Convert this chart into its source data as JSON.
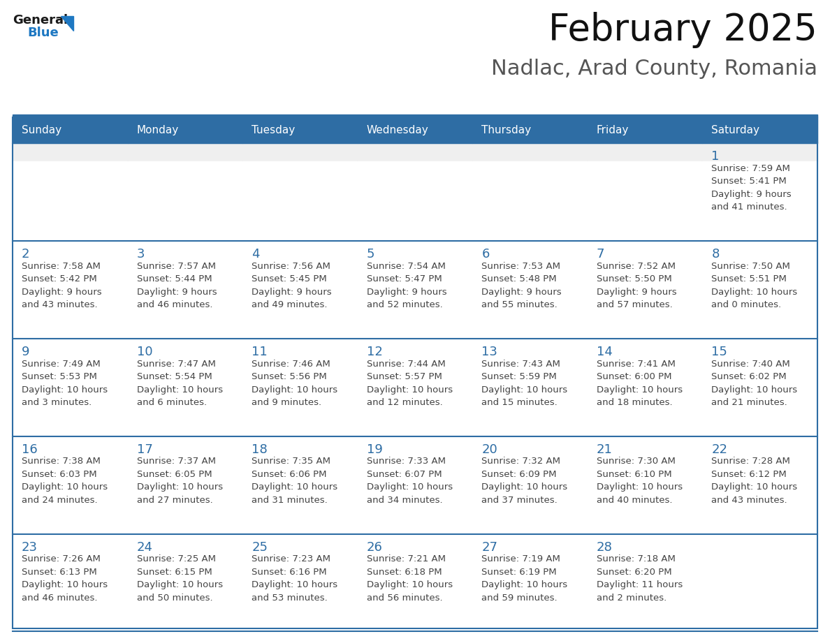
{
  "title": "February 2025",
  "subtitle": "Nadlac, Arad County, Romania",
  "header_color": "#2E6DA4",
  "header_text_color": "#FFFFFF",
  "day_names": [
    "Sunday",
    "Monday",
    "Tuesday",
    "Wednesday",
    "Thursday",
    "Friday",
    "Saturday"
  ],
  "background_color": "#FFFFFF",
  "cell_bg_row1_top": "#EFEFEF",
  "cell_bg_white": "#FFFFFF",
  "separator_color": "#2E6DA4",
  "separator_light": "#AAAAAA",
  "day_number_color": "#2E6DA4",
  "text_color": "#444444",
  "logo_general_color": "#1A1A1A",
  "logo_blue_color": "#1E78C2",
  "weeks": [
    [
      null,
      null,
      null,
      null,
      null,
      null,
      1
    ],
    [
      2,
      3,
      4,
      5,
      6,
      7,
      8
    ],
    [
      9,
      10,
      11,
      12,
      13,
      14,
      15
    ],
    [
      16,
      17,
      18,
      19,
      20,
      21,
      22
    ],
    [
      23,
      24,
      25,
      26,
      27,
      28,
      null
    ]
  ],
  "day_data": {
    "1": {
      "sunrise": "7:59 AM",
      "sunset": "5:41 PM",
      "daylight_line1": "Daylight: 9 hours",
      "daylight_line2": "and 41 minutes."
    },
    "2": {
      "sunrise": "7:58 AM",
      "sunset": "5:42 PM",
      "daylight_line1": "Daylight: 9 hours",
      "daylight_line2": "and 43 minutes."
    },
    "3": {
      "sunrise": "7:57 AM",
      "sunset": "5:44 PM",
      "daylight_line1": "Daylight: 9 hours",
      "daylight_line2": "and 46 minutes."
    },
    "4": {
      "sunrise": "7:56 AM",
      "sunset": "5:45 PM",
      "daylight_line1": "Daylight: 9 hours",
      "daylight_line2": "and 49 minutes."
    },
    "5": {
      "sunrise": "7:54 AM",
      "sunset": "5:47 PM",
      "daylight_line1": "Daylight: 9 hours",
      "daylight_line2": "and 52 minutes."
    },
    "6": {
      "sunrise": "7:53 AM",
      "sunset": "5:48 PM",
      "daylight_line1": "Daylight: 9 hours",
      "daylight_line2": "and 55 minutes."
    },
    "7": {
      "sunrise": "7:52 AM",
      "sunset": "5:50 PM",
      "daylight_line1": "Daylight: 9 hours",
      "daylight_line2": "and 57 minutes."
    },
    "8": {
      "sunrise": "7:50 AM",
      "sunset": "5:51 PM",
      "daylight_line1": "Daylight: 10 hours",
      "daylight_line2": "and 0 minutes."
    },
    "9": {
      "sunrise": "7:49 AM",
      "sunset": "5:53 PM",
      "daylight_line1": "Daylight: 10 hours",
      "daylight_line2": "and 3 minutes."
    },
    "10": {
      "sunrise": "7:47 AM",
      "sunset": "5:54 PM",
      "daylight_line1": "Daylight: 10 hours",
      "daylight_line2": "and 6 minutes."
    },
    "11": {
      "sunrise": "7:46 AM",
      "sunset": "5:56 PM",
      "daylight_line1": "Daylight: 10 hours",
      "daylight_line2": "and 9 minutes."
    },
    "12": {
      "sunrise": "7:44 AM",
      "sunset": "5:57 PM",
      "daylight_line1": "Daylight: 10 hours",
      "daylight_line2": "and 12 minutes."
    },
    "13": {
      "sunrise": "7:43 AM",
      "sunset": "5:59 PM",
      "daylight_line1": "Daylight: 10 hours",
      "daylight_line2": "and 15 minutes."
    },
    "14": {
      "sunrise": "7:41 AM",
      "sunset": "6:00 PM",
      "daylight_line1": "Daylight: 10 hours",
      "daylight_line2": "and 18 minutes."
    },
    "15": {
      "sunrise": "7:40 AM",
      "sunset": "6:02 PM",
      "daylight_line1": "Daylight: 10 hours",
      "daylight_line2": "and 21 minutes."
    },
    "16": {
      "sunrise": "7:38 AM",
      "sunset": "6:03 PM",
      "daylight_line1": "Daylight: 10 hours",
      "daylight_line2": "and 24 minutes."
    },
    "17": {
      "sunrise": "7:37 AM",
      "sunset": "6:05 PM",
      "daylight_line1": "Daylight: 10 hours",
      "daylight_line2": "and 27 minutes."
    },
    "18": {
      "sunrise": "7:35 AM",
      "sunset": "6:06 PM",
      "daylight_line1": "Daylight: 10 hours",
      "daylight_line2": "and 31 minutes."
    },
    "19": {
      "sunrise": "7:33 AM",
      "sunset": "6:07 PM",
      "daylight_line1": "Daylight: 10 hours",
      "daylight_line2": "and 34 minutes."
    },
    "20": {
      "sunrise": "7:32 AM",
      "sunset": "6:09 PM",
      "daylight_line1": "Daylight: 10 hours",
      "daylight_line2": "and 37 minutes."
    },
    "21": {
      "sunrise": "7:30 AM",
      "sunset": "6:10 PM",
      "daylight_line1": "Daylight: 10 hours",
      "daylight_line2": "and 40 minutes."
    },
    "22": {
      "sunrise": "7:28 AM",
      "sunset": "6:12 PM",
      "daylight_line1": "Daylight: 10 hours",
      "daylight_line2": "and 43 minutes."
    },
    "23": {
      "sunrise": "7:26 AM",
      "sunset": "6:13 PM",
      "daylight_line1": "Daylight: 10 hours",
      "daylight_line2": "and 46 minutes."
    },
    "24": {
      "sunrise": "7:25 AM",
      "sunset": "6:15 PM",
      "daylight_line1": "Daylight: 10 hours",
      "daylight_line2": "and 50 minutes."
    },
    "25": {
      "sunrise": "7:23 AM",
      "sunset": "6:16 PM",
      "daylight_line1": "Daylight: 10 hours",
      "daylight_line2": "and 53 minutes."
    },
    "26": {
      "sunrise": "7:21 AM",
      "sunset": "6:18 PM",
      "daylight_line1": "Daylight: 10 hours",
      "daylight_line2": "and 56 minutes."
    },
    "27": {
      "sunrise": "7:19 AM",
      "sunset": "6:19 PM",
      "daylight_line1": "Daylight: 10 hours",
      "daylight_line2": "and 59 minutes."
    },
    "28": {
      "sunrise": "7:18 AM",
      "sunset": "6:20 PM",
      "daylight_line1": "Daylight: 11 hours",
      "daylight_line2": "and 2 minutes."
    }
  }
}
